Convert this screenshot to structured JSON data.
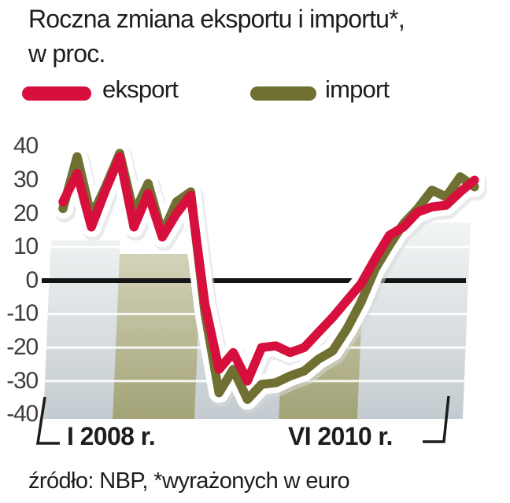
{
  "header": {
    "title_line1": "Roczna zmiana eksportu i importu*,",
    "title_line2": "w proc."
  },
  "legend": [
    {
      "label": "eksport",
      "color": "#d60f3c"
    },
    {
      "label": "import",
      "color": "#6f7031"
    }
  ],
  "axis": {
    "y_ticks": [
      "40",
      "30",
      "20",
      "10",
      "0",
      "-10",
      "-20",
      "-30",
      "-40"
    ],
    "x_start_label": "I 2008 r.",
    "x_end_label": "VI 2010 r."
  },
  "footer": {
    "source": "źródło: NBP, *wyrażonych w euro"
  },
  "chart_data": {
    "type": "line",
    "title": "Roczna zmiana eksportu i importu*, w proc.",
    "x_unit": "month",
    "x_tick_labels_visible": [
      "I 2008 r.",
      "VI 2010 r."
    ],
    "x_months": [
      "I 2008",
      "II 2008",
      "III 2008",
      "IV 2008",
      "V 2008",
      "VI 2008",
      "VII 2008",
      "VIII 2008",
      "IX 2008",
      "X 2008",
      "XI 2008",
      "XII 2008",
      "I 2009",
      "II 2009",
      "III 2009",
      "IV 2009",
      "V 2009",
      "VI 2009",
      "VII 2009",
      "VIII 2009",
      "IX 2009",
      "X 2009",
      "XI 2009",
      "XII 2009",
      "I 2010",
      "II 2010",
      "III 2010",
      "IV 2010",
      "V 2010",
      "VI 2010"
    ],
    "ylim": [
      -40,
      40
    ],
    "y_tick_step": 10,
    "zero_line": true,
    "grid": "horizontal-white-on-band",
    "legend_position": "top",
    "series": [
      {
        "name": "eksport",
        "color": "#d60f3c",
        "values": [
          23.5,
          32,
          16,
          27,
          37,
          16,
          26,
          13,
          20,
          25.5,
          -7,
          -26.5,
          -21.5,
          -30,
          -20,
          -19.5,
          -21.5,
          -20,
          -15.5,
          -11,
          -6,
          -1,
          6.5,
          13.5,
          16,
          20.5,
          22,
          22.5,
          26.5,
          30
        ]
      },
      {
        "name": "import",
        "color": "#6f7031",
        "values": [
          21.5,
          37,
          19,
          28,
          38,
          20,
          29,
          14,
          23.5,
          26.5,
          -9.5,
          -33.5,
          -26.5,
          -35.5,
          -31,
          -30.5,
          -28.5,
          -27,
          -23.5,
          -21,
          -14.5,
          -6.5,
          3.5,
          10.5,
          17,
          21.5,
          27,
          25,
          31,
          28
        ]
      }
    ],
    "background_band_colors": {
      "grey": "#c3cbd0",
      "olive": "#a2a276"
    }
  }
}
